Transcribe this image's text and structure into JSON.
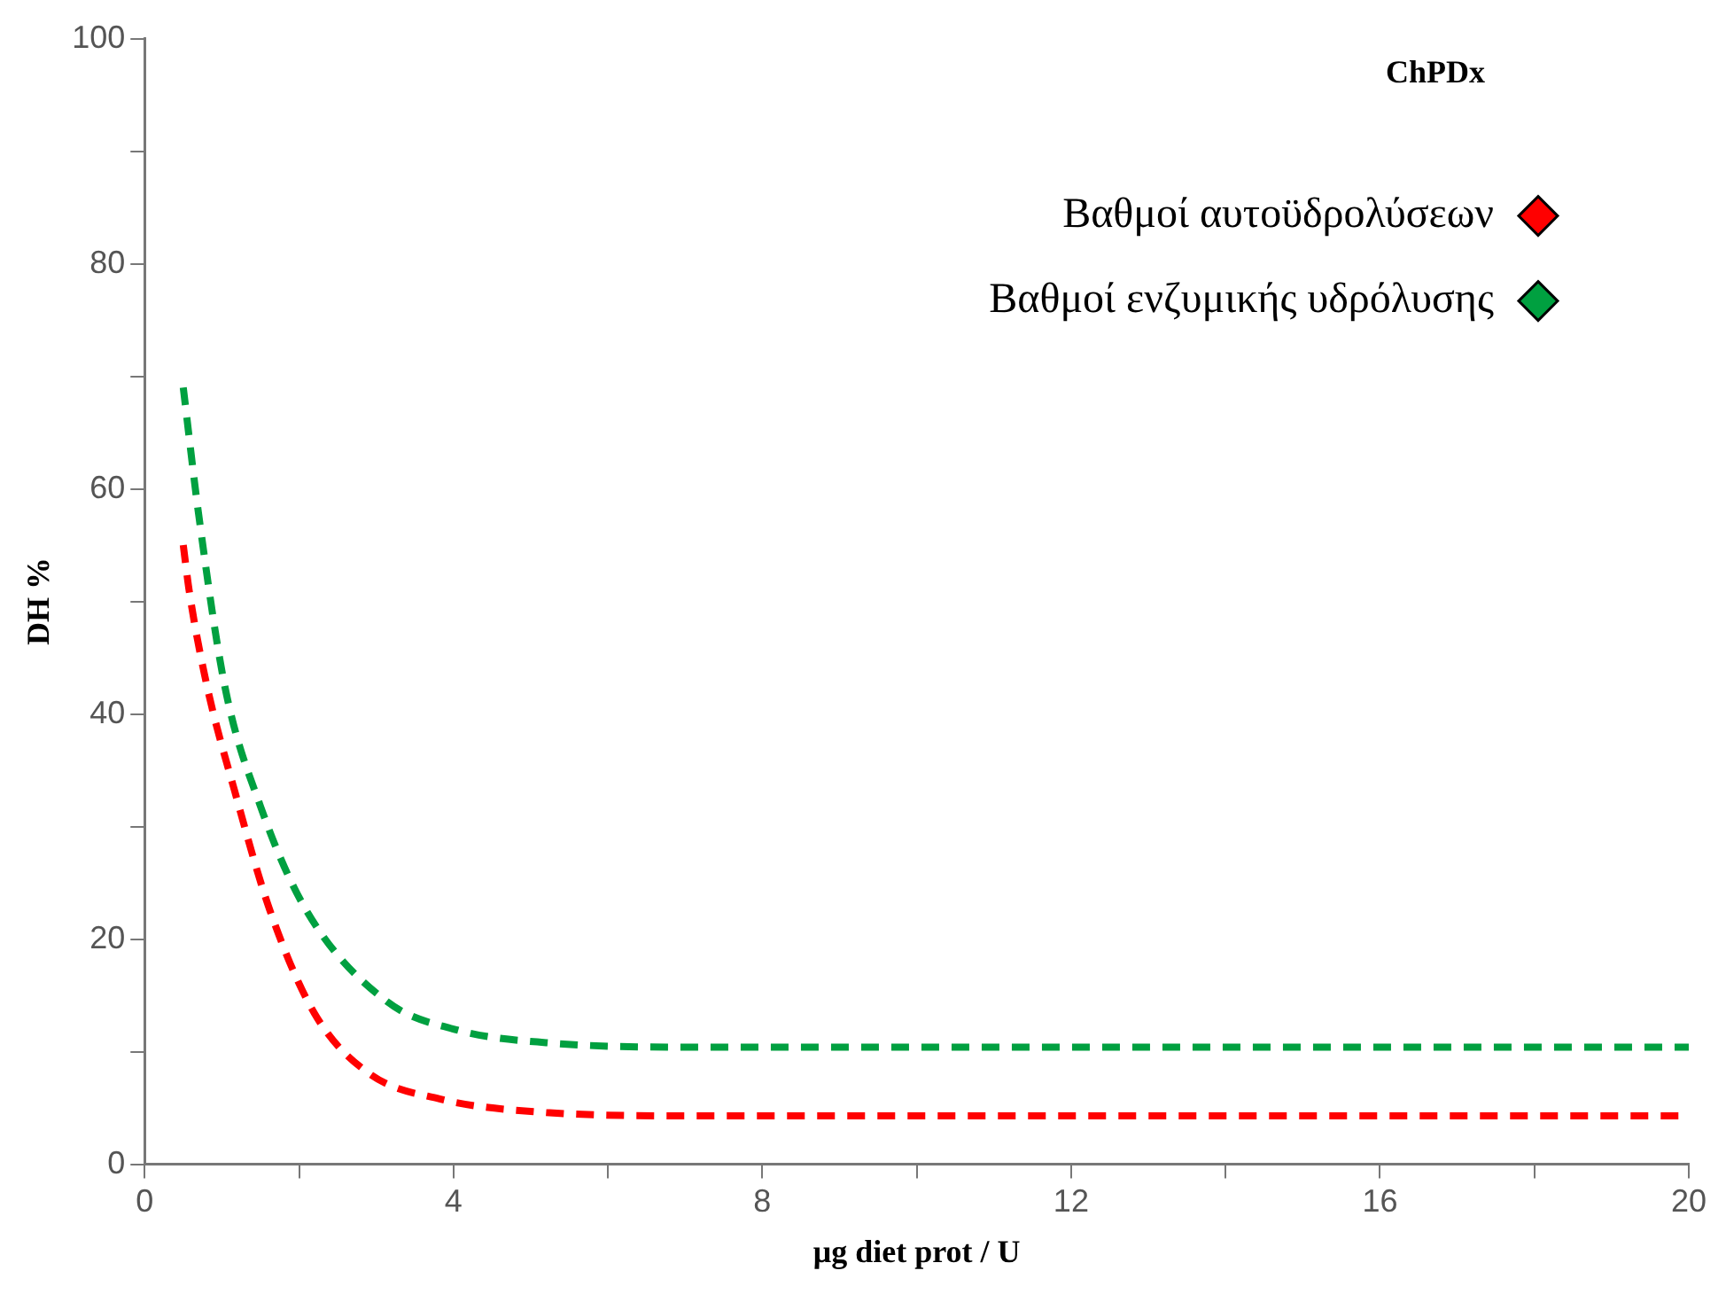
{
  "chart_data": {
    "type": "line",
    "title": "ChPDx",
    "xlabel": "μg diet prot / U",
    "ylabel": "DH %",
    "xlim": [
      0,
      20
    ],
    "ylim": [
      0,
      100
    ],
    "xticks": [
      0,
      {
        "value": 2,
        "label": null
      },
      4,
      {
        "value": 6,
        "label": null
      },
      8,
      {
        "value": 10,
        "label": null
      },
      12,
      {
        "value": 14,
        "label": null
      },
      16,
      {
        "value": 18,
        "label": null
      },
      20
    ],
    "yticks": [
      0,
      {
        "value": 10,
        "label": null
      },
      20,
      {
        "value": 30,
        "label": null
      },
      40,
      {
        "value": 50,
        "label": null
      },
      60,
      {
        "value": 70,
        "label": null
      },
      80,
      {
        "value": 90,
        "label": null
      },
      100
    ],
    "grid": false,
    "legend": "top right",
    "line_style": "dashed",
    "marker": "none",
    "series": [
      {
        "name": "Βαθμοί αυτοϋδρολύσεων",
        "color": "#ff0000",
        "x": [
          0.5,
          0.58,
          0.81,
          1.16,
          1.62,
          2.2,
          2.9,
          3.82,
          5.2,
          7.07,
          10,
          14,
          20
        ],
        "values": [
          55,
          50.8,
          42.4,
          33.3,
          22.6,
          13.4,
          8.1,
          5.8,
          4.6,
          4.3,
          4.3,
          4.3,
          4.3
        ]
      },
      {
        "name": "Βαθμοί ενζυμικής υδρόλυσης",
        "color": "#00a040",
        "x": [
          0.5,
          0.7,
          1.04,
          1.5,
          2.09,
          3.13,
          4.06,
          5.2,
          7.07,
          10,
          14,
          20
        ],
        "values": [
          69,
          57.7,
          42.4,
          31.8,
          22.6,
          14.5,
          11.9,
          10.8,
          10.4,
          10.4,
          10.4,
          10.4
        ]
      }
    ]
  }
}
